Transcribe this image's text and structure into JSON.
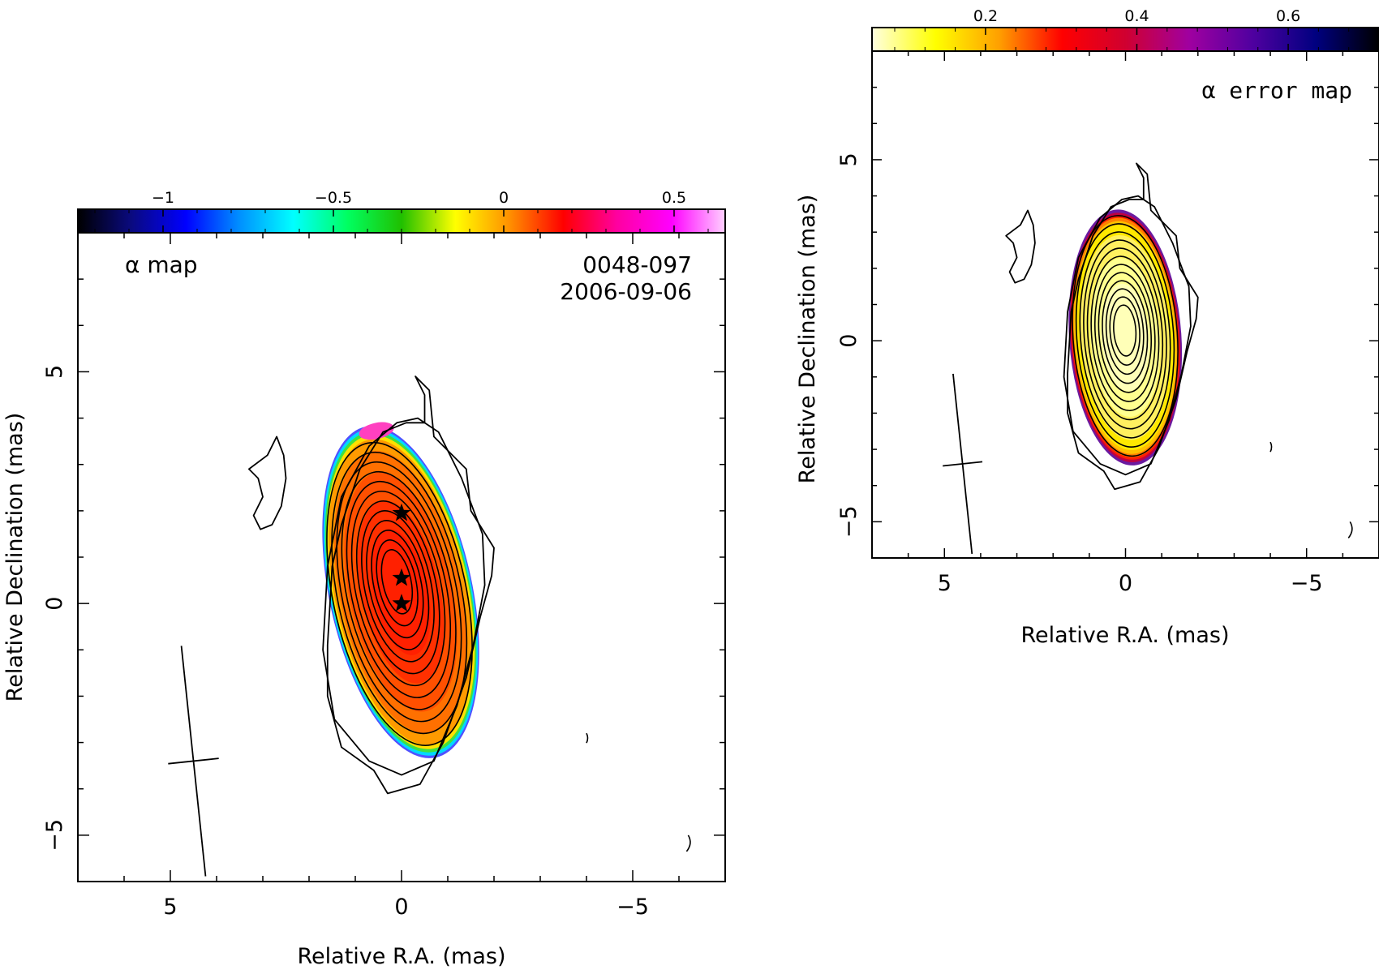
{
  "chart_data": [
    {
      "type": "heatmap",
      "panel": "alpha map",
      "title_lines": [
        "0048-097",
        "2006-09-06"
      ],
      "map_label": "α map",
      "xlabel": "Relative R.A. (mas)",
      "ylabel": "Relative Declination (mas)",
      "xlim": [
        7,
        -7
      ],
      "ylim": [
        -6,
        8
      ],
      "xticks": [
        5,
        0,
        -5
      ],
      "xtick_labels": [
        "5",
        "0",
        "−5"
      ],
      "yticks": [
        -5,
        0,
        5
      ],
      "ytick_labels": [
        "−5",
        "0",
        "5"
      ],
      "colorbar": {
        "range": [
          -1.25,
          0.65
        ],
        "ticks": [
          -1,
          -0.5,
          0,
          0.5
        ],
        "tick_labels": [
          "−1",
          "−0.5",
          "0",
          "0.5"
        ],
        "stops": [
          "#000000",
          "#0a0a80",
          "#0000ff",
          "#0090ff",
          "#00ffff",
          "#00ff60",
          "#20c000",
          "#ffff00",
          "#ff9000",
          "#ff0000",
          "#ff00a0",
          "#ff00ff",
          "#ffd0ff"
        ]
      },
      "source_center": [
        0,
        0
      ],
      "core_value": 0.25,
      "contour_levels": 12,
      "components": [
        {
          "x": 0,
          "y": 1.95
        },
        {
          "x": 0,
          "y": 0.55
        },
        {
          "x": 0,
          "y": 0
        }
      ],
      "beam": {
        "x": 4.5,
        "y": -3.4,
        "major": 5,
        "minor": 1.1,
        "pa_deg": 6
      }
    },
    {
      "type": "heatmap",
      "panel": "alpha error map",
      "map_label": "α error map",
      "xlabel": "Relative R.A. (mas)",
      "ylabel": "Relative Declination (mas)",
      "xlim": [
        7,
        -7
      ],
      "ylim": [
        -6,
        8
      ],
      "xticks": [
        5,
        0,
        -5
      ],
      "xtick_labels": [
        "5",
        "0",
        "−5"
      ],
      "yticks": [
        -5,
        0,
        5
      ],
      "ytick_labels": [
        "−5",
        "0",
        "5"
      ],
      "colorbar": {
        "range": [
          0.05,
          0.72
        ],
        "ticks": [
          0.2,
          0.4,
          0.6
        ],
        "tick_labels": [
          "0.2",
          "0.4",
          "0.6"
        ],
        "stops": [
          "#ffffe0",
          "#ffff00",
          "#ffa000",
          "#ff0000",
          "#d00030",
          "#a000a0",
          "#5000a0",
          "#000080",
          "#000000"
        ]
      },
      "source_center": [
        0,
        0
      ],
      "core_value": 0.08,
      "contour_levels": 12,
      "beam": {
        "x": 4.5,
        "y": -3.4,
        "major": 5,
        "minor": 1.1,
        "pa_deg": 6
      }
    }
  ]
}
